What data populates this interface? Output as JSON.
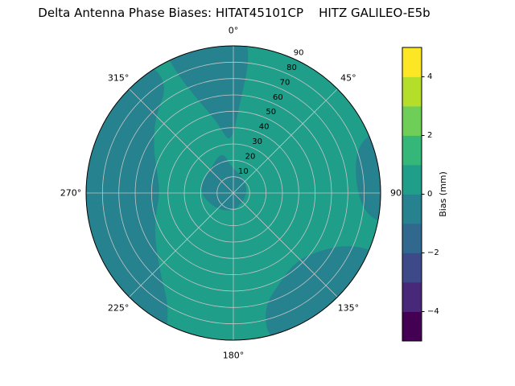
{
  "chart_data": {
    "type": "polar_contour",
    "title": "Delta Antenna Phase Biases: HITAT45101CP    HITZ GALILEO-E5b",
    "angular_ticks": [
      {
        "deg": 0,
        "label": "0°"
      },
      {
        "deg": 45,
        "label": "45°"
      },
      {
        "deg": 90,
        "label": "90"
      },
      {
        "deg": 135,
        "label": "135°"
      },
      {
        "deg": 180,
        "label": "180°"
      },
      {
        "deg": 225,
        "label": "225°"
      },
      {
        "deg": 270,
        "label": "270°"
      },
      {
        "deg": 315,
        "label": "315°"
      }
    ],
    "radial_ticks": [
      10,
      20,
      30,
      40,
      50,
      60,
      70,
      80,
      90
    ],
    "r_max": 90,
    "radial_label_angle_deg": 25,
    "grid_color": "#c6c6c6",
    "outline_color": "#000000",
    "colorbar": {
      "label": "Bias (mm)",
      "min": -5,
      "max": 5,
      "ticks": [
        4,
        2,
        0,
        -2,
        -4
      ],
      "tick_labels": [
        "4",
        "2",
        "0",
        "−2",
        "−4"
      ],
      "band_colors_bottom_to_top": [
        "#440154",
        "#482878",
        "#3e4989",
        "#31688e",
        "#26828e",
        "#1f9e89",
        "#35b779",
        "#6ece58",
        "#b5de2b",
        "#fde725"
      ]
    },
    "base_region": {
      "value_band_mm": "0 to 1",
      "color": "#1f9e89"
    },
    "regions": [
      {
        "name": "left-rim",
        "value_band_mm": "-1 to 0",
        "color": "#26828e",
        "points_theta_rfrac": [
          [
            205,
            1.08
          ],
          [
            235,
            1.08
          ],
          [
            268,
            1.08
          ],
          [
            300,
            1.08
          ],
          [
            327,
            1.08
          ],
          [
            329,
            0.86
          ],
          [
            314,
            0.74
          ],
          [
            299,
            0.62
          ],
          [
            284,
            0.53
          ],
          [
            269,
            0.5
          ],
          [
            252,
            0.56
          ],
          [
            237,
            0.63
          ],
          [
            222,
            0.74
          ],
          [
            210,
            0.88
          ]
        ]
      },
      {
        "name": "top-center",
        "value_band_mm": "-1 to 0",
        "color": "#26828e",
        "points_theta_rfrac": [
          [
            334,
            1.08
          ],
          [
            350,
            1.08
          ],
          [
            4,
            1.08
          ],
          [
            7,
            0.92
          ],
          [
            4,
            0.6
          ],
          [
            357,
            0.32
          ],
          [
            347,
            0.5
          ],
          [
            339,
            0.68
          ],
          [
            335,
            0.88
          ]
        ]
      },
      {
        "name": "center",
        "value_band_mm": "-1 to 0",
        "color": "#26828e",
        "points_theta_rfrac": [
          [
            310,
            0.22
          ],
          [
            345,
            0.3
          ],
          [
            355,
            0.18
          ],
          [
            25,
            0.13
          ],
          [
            75,
            0.1
          ],
          [
            130,
            0.09
          ],
          [
            185,
            0.13
          ],
          [
            235,
            0.17
          ],
          [
            275,
            0.24
          ]
        ]
      },
      {
        "name": "lower-right-rim",
        "value_band_mm": "-1 to 0",
        "color": "#26828e",
        "points_theta_rfrac": [
          [
            112,
            1.08
          ],
          [
            138,
            1.08
          ],
          [
            166,
            1.08
          ],
          [
            166,
            0.82
          ],
          [
            152,
            0.68
          ],
          [
            138,
            0.63
          ],
          [
            124,
            0.7
          ],
          [
            114,
            0.86
          ]
        ]
      },
      {
        "name": "right-rim",
        "value_band_mm": "-1 to 0",
        "color": "#26828e",
        "points_theta_rfrac": [
          [
            66,
            1.08
          ],
          [
            84,
            1.08
          ],
          [
            102,
            1.08
          ],
          [
            99,
            0.9
          ],
          [
            84,
            0.83
          ],
          [
            69,
            0.9
          ]
        ]
      }
    ]
  }
}
